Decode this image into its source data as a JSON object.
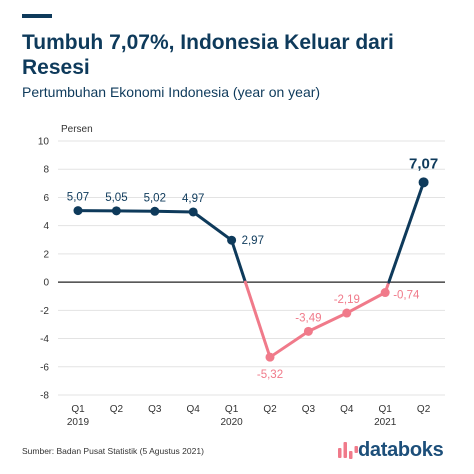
{
  "header": {
    "title": "Tumbuh 7,07%, Indonesia Keluar dari Resesi",
    "subtitle": "Pertumbuhan Ekonomi Indonesia (year on year)"
  },
  "footer": {
    "source": "Sumber: Badan Pusat Statistik (5 Agustus 2021)",
    "brand": "databoks"
  },
  "colors": {
    "positive": "#0e3a5b",
    "negative": "#f07a8a",
    "text": "#0e3a5b",
    "brand_mark": "#f07a8a",
    "brand_text": "#1d4f7a"
  },
  "chart_data": {
    "type": "line",
    "ylabel": "Persen",
    "ylim": [
      -8,
      10
    ],
    "yticks": [
      10,
      8,
      6,
      4,
      2,
      0,
      -2,
      -4,
      -6,
      -8
    ],
    "ytick_labels": [
      "10",
      "8",
      "6",
      "4",
      "2",
      "0",
      "-2",
      "-4",
      "-6",
      "-8"
    ],
    "categories": [
      "Q1",
      "Q2",
      "Q3",
      "Q4",
      "Q1",
      "Q2",
      "Q3",
      "Q4",
      "Q1",
      "Q2"
    ],
    "years": [
      {
        "label": "2019",
        "index": 0
      },
      {
        "label": "2020",
        "index": 4
      },
      {
        "label": "2021",
        "index": 8
      }
    ],
    "values": [
      5.07,
      5.05,
      5.02,
      4.97,
      2.97,
      -5.32,
      -3.49,
      -2.19,
      -0.74,
      7.07
    ],
    "value_labels": [
      "5,07",
      "5,05",
      "5,02",
      "4,97",
      "2,97",
      "-5,32",
      "-3,49",
      "-2,19",
      "-0,74",
      "7,07"
    ],
    "grid": true
  }
}
